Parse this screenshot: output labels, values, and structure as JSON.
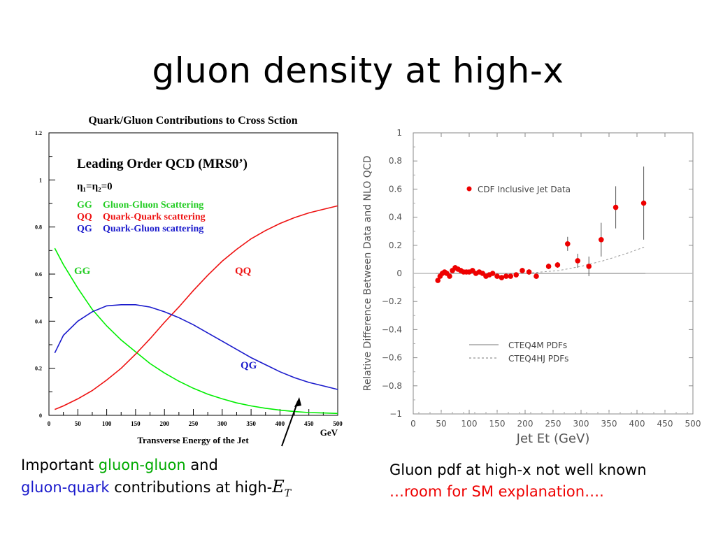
{
  "slide": {
    "title": "gluon density at high-x"
  },
  "colors": {
    "gg": "#00ee00",
    "qq": "#ee1111",
    "qg": "#1a1acc",
    "cdf_points": "#ee0000",
    "zero_line": "#bbbbbb",
    "caption_green": "#00aa00",
    "caption_blue": "#1a1acc",
    "caption_red": "#ee0000"
  },
  "captions": {
    "left": {
      "important": "Important ",
      "gluon_gluon": "gluon-gluon",
      "and": " and",
      "gluon_quark": "gluon-quark",
      "contributions": " contributions at high-",
      "et_symbol": "E",
      "et_sub": "T"
    },
    "right": {
      "line1": "Gluon pdf at high-x not well known",
      "line2": "…room for SM explanation…."
    }
  },
  "chart_data": [
    {
      "type": "line",
      "title": "Quark/Gluon Contributions to Cross Sction",
      "subtitle": "Leading Order QCD (MRS0’)",
      "eta_condition": "η₁=η₂=0",
      "xlabel": "Transverse Energy of the Jet",
      "xunit": "GeV",
      "ylabel": "",
      "xlim": [
        0,
        500
      ],
      "ylim": [
        0,
        1.2
      ],
      "x_ticks": [
        "0",
        "50",
        "100",
        "150",
        "200",
        "250",
        "300",
        "350",
        "400",
        "450",
        "500"
      ],
      "y_ticks": [
        "0",
        "0.2",
        "0.4",
        "0.6",
        "0.8",
        "1",
        "1.2"
      ],
      "legend": [
        {
          "code": "GG",
          "text": "Gluon-Gluon Scattering"
        },
        {
          "code": "QQ",
          "text": "Quark-Quark scattering"
        },
        {
          "code": "QG",
          "text": "Quark-Gluon scattering"
        }
      ],
      "curve_labels": {
        "gg": "GG",
        "qq": "QQ",
        "qg": "QG"
      },
      "x": [
        10,
        25,
        50,
        75,
        100,
        125,
        150,
        175,
        200,
        225,
        250,
        275,
        300,
        325,
        350,
        375,
        400,
        425,
        450,
        475,
        500
      ],
      "series": [
        {
          "key": "gg",
          "values": [
            0.71,
            0.64,
            0.54,
            0.45,
            0.38,
            0.32,
            0.27,
            0.22,
            0.18,
            0.145,
            0.115,
            0.09,
            0.07,
            0.053,
            0.04,
            0.03,
            0.022,
            0.016,
            0.012,
            0.01,
            0.008
          ]
        },
        {
          "key": "qq",
          "values": [
            0.025,
            0.04,
            0.07,
            0.105,
            0.15,
            0.2,
            0.26,
            0.325,
            0.395,
            0.46,
            0.53,
            0.595,
            0.655,
            0.705,
            0.75,
            0.785,
            0.815,
            0.84,
            0.86,
            0.875,
            0.89
          ]
        },
        {
          "key": "qg",
          "values": [
            0.265,
            0.34,
            0.4,
            0.44,
            0.465,
            0.47,
            0.47,
            0.46,
            0.44,
            0.415,
            0.385,
            0.35,
            0.315,
            0.28,
            0.245,
            0.215,
            0.185,
            0.16,
            0.14,
            0.125,
            0.11
          ]
        }
      ]
    },
    {
      "type": "scatter",
      "title": "",
      "xlabel": "Jet Et (GeV)",
      "ylabel": "Relative Difference Between Data and NLO QCD",
      "xlim": [
        0,
        500
      ],
      "ylim": [
        -1,
        1
      ],
      "x_ticks": [
        "0",
        "50",
        "100",
        "150",
        "200",
        "250",
        "300",
        "350",
        "400",
        "450",
        "500"
      ],
      "y_ticks": [
        "1",
        "0.8",
        "0.6",
        "0.4",
        "0.2",
        "0",
        "−0.2",
        "−0.4",
        "−0.6",
        "−0.8",
        "−1"
      ],
      "legend": {
        "points": "CDF Inclusive Jet Data",
        "solid": "CTEQ4M PDFs",
        "dashed": "CTEQ4HJ PDFs"
      },
      "cteq4m": {
        "x": [
          40,
          415
        ],
        "y": [
          0,
          0
        ]
      },
      "cteq4hj": {
        "x": [
          40,
          200,
          260,
          300,
          340,
          380,
          415
        ],
        "y": [
          0,
          0,
          0.02,
          0.05,
          0.09,
          0.14,
          0.19
        ]
      },
      "points": [
        {
          "x": 44,
          "y": -0.05,
          "err": 0.01
        },
        {
          "x": 48,
          "y": -0.02,
          "err": 0.01
        },
        {
          "x": 52,
          "y": 0.0,
          "err": 0.01
        },
        {
          "x": 56,
          "y": 0.01,
          "err": 0.01
        },
        {
          "x": 60,
          "y": 0.0,
          "err": 0.01
        },
        {
          "x": 65,
          "y": -0.02,
          "err": 0.01
        },
        {
          "x": 70,
          "y": 0.02,
          "err": 0.01
        },
        {
          "x": 75,
          "y": 0.04,
          "err": 0.02
        },
        {
          "x": 80,
          "y": 0.03,
          "err": 0.01
        },
        {
          "x": 85,
          "y": 0.02,
          "err": 0.01
        },
        {
          "x": 90,
          "y": 0.01,
          "err": 0.01
        },
        {
          "x": 95,
          "y": 0.01,
          "err": 0.01
        },
        {
          "x": 100,
          "y": 0.01,
          "err": 0.01
        },
        {
          "x": 106,
          "y": 0.02,
          "err": 0.01
        },
        {
          "x": 112,
          "y": 0.0,
          "err": 0.01
        },
        {
          "x": 118,
          "y": 0.01,
          "err": 0.01
        },
        {
          "x": 124,
          "y": 0.0,
          "err": 0.01
        },
        {
          "x": 130,
          "y": -0.02,
          "err": 0.01
        },
        {
          "x": 136,
          "y": -0.01,
          "err": 0.01
        },
        {
          "x": 142,
          "y": 0.0,
          "err": 0.01
        },
        {
          "x": 150,
          "y": -0.02,
          "err": 0.01
        },
        {
          "x": 158,
          "y": -0.03,
          "err": 0.01
        },
        {
          "x": 166,
          "y": -0.02,
          "err": 0.01
        },
        {
          "x": 174,
          "y": -0.02,
          "err": 0.01
        },
        {
          "x": 184,
          "y": -0.01,
          "err": 0.01
        },
        {
          "x": 195,
          "y": 0.02,
          "err": 0.02
        },
        {
          "x": 207,
          "y": 0.01,
          "err": 0.02
        },
        {
          "x": 220,
          "y": -0.02,
          "err": 0.02
        },
        {
          "x": 242,
          "y": 0.05,
          "err": 0.02
        },
        {
          "x": 258,
          "y": 0.06,
          "err": 0.02
        },
        {
          "x": 276,
          "y": 0.21,
          "err": 0.05
        },
        {
          "x": 294,
          "y": 0.09,
          "err": 0.05
        },
        {
          "x": 314,
          "y": 0.05,
          "err": 0.07
        },
        {
          "x": 336,
          "y": 0.24,
          "err": 0.12
        },
        {
          "x": 362,
          "y": 0.47,
          "err": 0.15
        },
        {
          "x": 412,
          "y": 0.5,
          "err": 0.26
        }
      ]
    }
  ]
}
